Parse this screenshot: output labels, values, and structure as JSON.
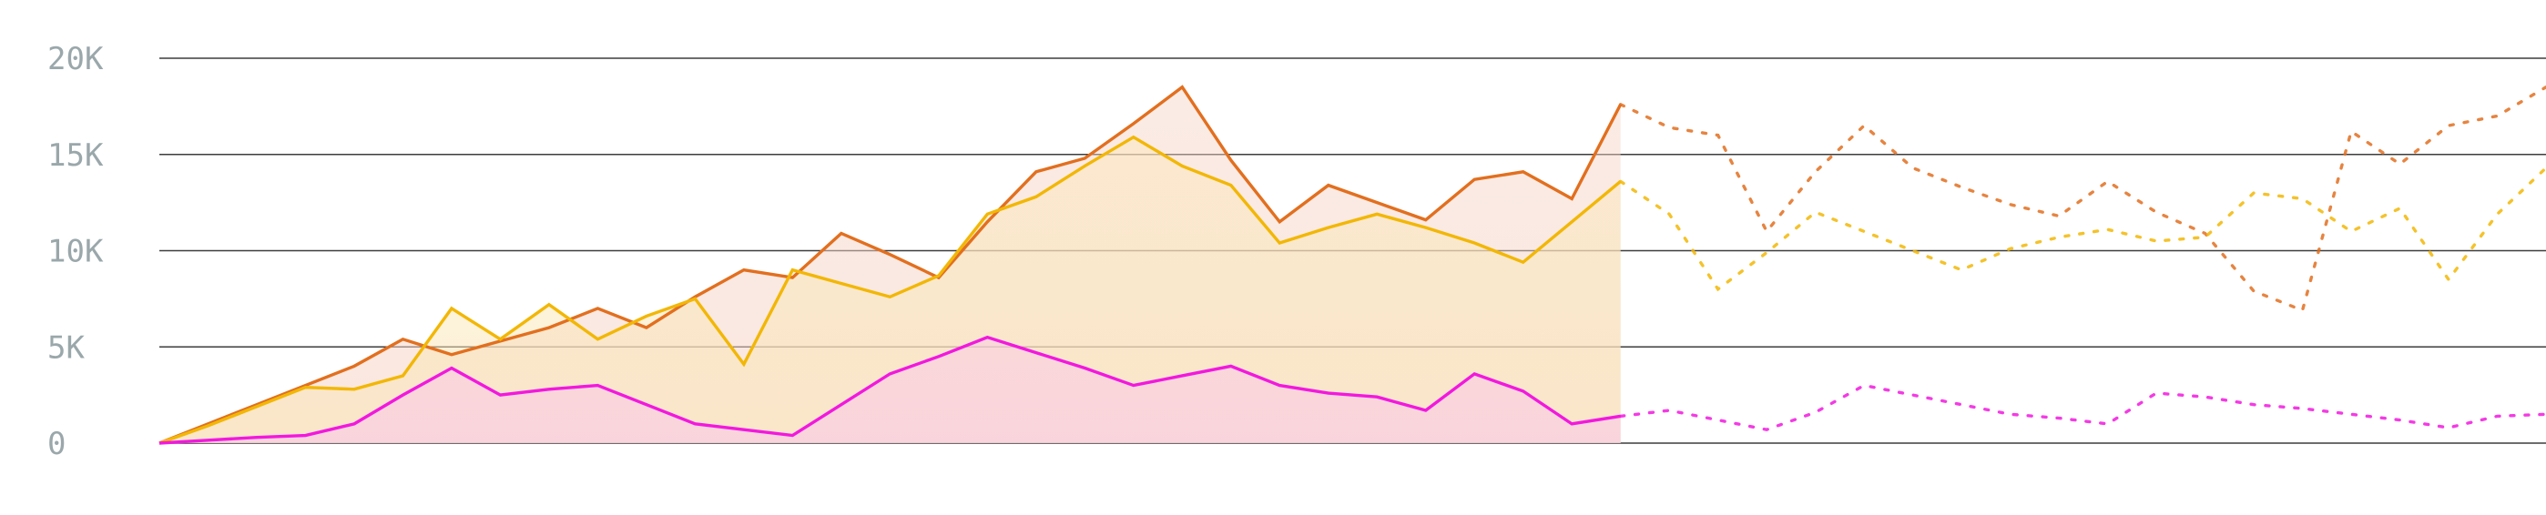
{
  "chart_data": {
    "type": "area",
    "title": "",
    "xlabel": "",
    "ylabel": "",
    "x": [
      0,
      1,
      2,
      3,
      4,
      5,
      6,
      7,
      8,
      9,
      10,
      11,
      12,
      13,
      14,
      15,
      16,
      17,
      18,
      19,
      20,
      21,
      22,
      23,
      24,
      25,
      26,
      27,
      28,
      29,
      30,
      31,
      32,
      33,
      34,
      35,
      36,
      37,
      38,
      39,
      40,
      41,
      42,
      43,
      44,
      45,
      46,
      47,
      48,
      49
    ],
    "ylim": [
      0,
      20000
    ],
    "yticks": [
      0,
      5000,
      10000,
      15000,
      20000
    ],
    "ytick_labels": [
      "0",
      "5K",
      "10K",
      "15K",
      "20K"
    ],
    "grid": true,
    "legend": "none",
    "solid_end_index": 30,
    "series": [
      {
        "color": "#E26F1E",
        "fill": "#F6D3C6",
        "values": [
          0,
          1000,
          2000,
          3000,
          4000,
          5400,
          4600,
          5300,
          6000,
          7000,
          6000,
          7600,
          9000,
          8600,
          10900,
          9800,
          8600,
          11500,
          14100,
          14800,
          16600,
          18500,
          14700,
          11500,
          13400,
          12500,
          11600,
          13700,
          14100,
          12700,
          17600,
          16400,
          16000,
          11000,
          14100,
          16500,
          14300,
          13300,
          12400,
          11800,
          13600,
          12000,
          10900,
          7900,
          6900,
          16200,
          14500,
          16500,
          17000,
          18500
        ]
      },
      {
        "color": "#F2B705",
        "fill": "#FBE6B6",
        "values": [
          0,
          900,
          1900,
          2900,
          2800,
          3500,
          7000,
          5400,
          7200,
          5400,
          6600,
          7500,
          4100,
          9000,
          8300,
          7600,
          8700,
          11900,
          12800,
          14400,
          15900,
          14400,
          13400,
          10400,
          11200,
          11900,
          11200,
          10400,
          9400,
          11500,
          13600,
          11900,
          8000,
          9900,
          12000,
          11000,
          10000,
          9000,
          10100,
          10700,
          11100,
          10500,
          10700,
          13000,
          12700,
          11000,
          12200,
          8500,
          11900,
          14300
        ]
      },
      {
        "color": "#F218DF",
        "fill": "#F8C6EC",
        "values": [
          0,
          150,
          300,
          400,
          1000,
          2500,
          3900,
          2500,
          2800,
          3000,
          2000,
          1000,
          700,
          400,
          2000,
          3600,
          4500,
          5500,
          4700,
          3900,
          3000,
          3500,
          4000,
          3000,
          2600,
          2400,
          1700,
          3600,
          2700,
          1000,
          1400,
          1700,
          1200,
          700,
          1600,
          3000,
          2500,
          2000,
          1500,
          1300,
          1000,
          2600,
          2400,
          2000,
          1800,
          1500,
          1200,
          800,
          1400,
          1500
        ]
      }
    ]
  }
}
